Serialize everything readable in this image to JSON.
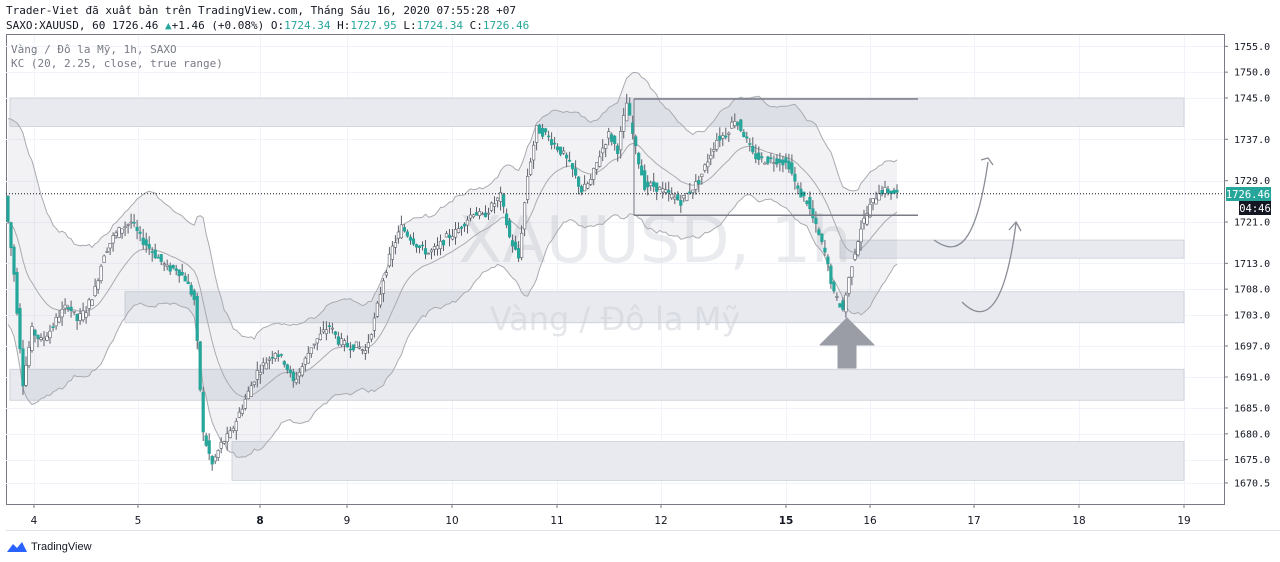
{
  "header": {
    "published_by": "Trader-Viet đã xuất bản trên TradingView.com, Tháng Sáu 16, 2020 07:55:28 +07",
    "symbol_line": "SAXO:XAUUSD, 60",
    "last": "1726.46",
    "change_arrow": "▲",
    "change": "+1.46 (+0.08%)",
    "o_label": "O:",
    "o": "1724.34",
    "h_label": "H:",
    "h": "1727.95",
    "l_label": "L:",
    "l": "1724.34",
    "c_label": "C:",
    "c": "1726.46"
  },
  "legend": {
    "series_title": "Vàng / Đô la Mỹ, 1h, SAXO",
    "indicator": "KC (20, 2.25, close, true range)"
  },
  "watermark": {
    "symbol": "XAUUSD, 1h",
    "name": "Vàng / Đô la Mỹ"
  },
  "price_badge": {
    "price": "1726.46",
    "countdown": "04:46"
  },
  "footer": {
    "brand": "TradingView"
  },
  "colors": {
    "up": "#26a69a",
    "down": "#ef5350",
    "candle_up_fill": "#ffffff",
    "candle_line": "#5d606b",
    "zone": "#e8eaf0",
    "band": "#a9abb0"
  },
  "chart_data": {
    "type": "candlestick",
    "symbol": "SAXO:XAUUSD",
    "timeframe": "1h",
    "ylim": [
      1667.5,
      1758
    ],
    "y_ticks": [
      1670.5,
      1675.0,
      1680.0,
      1685.0,
      1691.0,
      1697.0,
      1703.0,
      1708.0,
      1713.0,
      1721.0,
      1729.0,
      1737.0,
      1745.0,
      1750.0,
      1755.0
    ],
    "x_ticks": [
      {
        "label": "4",
        "bold": false
      },
      {
        "label": "5",
        "bold": false
      },
      {
        "label": "8",
        "bold": true
      },
      {
        "label": "9",
        "bold": false
      },
      {
        "label": "10",
        "bold": false
      },
      {
        "label": "11",
        "bold": false
      },
      {
        "label": "12",
        "bold": false
      },
      {
        "label": "15",
        "bold": true
      },
      {
        "label": "16",
        "bold": false
      },
      {
        "label": "17",
        "bold": false
      },
      {
        "label": "18",
        "bold": false
      },
      {
        "label": "19",
        "bold": false
      }
    ],
    "last_price": 1726.46,
    "zones": [
      {
        "from": 1739.5,
        "to": 1745.0,
        "x_start": "4",
        "x_end": "19"
      },
      {
        "from": 1714.0,
        "to": 1717.5,
        "x_start": "15",
        "x_end": "19"
      },
      {
        "from": 1701.5,
        "to": 1707.5,
        "x_start": "5",
        "x_end": "19"
      },
      {
        "from": 1686.5,
        "to": 1692.5,
        "x_start": "4",
        "x_end": "19"
      },
      {
        "from": 1671.0,
        "to": 1678.5,
        "x_start": "8",
        "x_end": "19"
      }
    ],
    "range_lines": [
      1744.8,
      1722.3
    ],
    "price_path": [
      1726,
      1711,
      1690,
      1700,
      1698,
      1700,
      1703,
      1705,
      1702,
      1704,
      1708,
      1715,
      1718,
      1720,
      1721,
      1718,
      1716,
      1714,
      1712,
      1712,
      1710,
      1706,
      1680,
      1674,
      1678,
      1680,
      1684,
      1688,
      1692,
      1694,
      1696,
      1694,
      1690,
      1693,
      1697,
      1699,
      1701,
      1698,
      1697,
      1697,
      1696,
      1702,
      1710,
      1716,
      1720,
      1718,
      1716,
      1715,
      1716,
      1718,
      1719,
      1721,
      1723,
      1722,
      1724,
      1726,
      1718,
      1714,
      1730,
      1739,
      1738,
      1736,
      1734,
      1731,
      1727,
      1729,
      1734,
      1738,
      1735,
      1744,
      1735,
      1728,
      1728,
      1727,
      1726,
      1725,
      1727,
      1729,
      1733,
      1737,
      1738,
      1741,
      1738,
      1734,
      1733,
      1733,
      1733,
      1732,
      1727,
      1725,
      1720,
      1715,
      1707,
      1704,
      1713,
      1720,
      1724,
      1727,
      1727,
      1726.46
    ]
  }
}
